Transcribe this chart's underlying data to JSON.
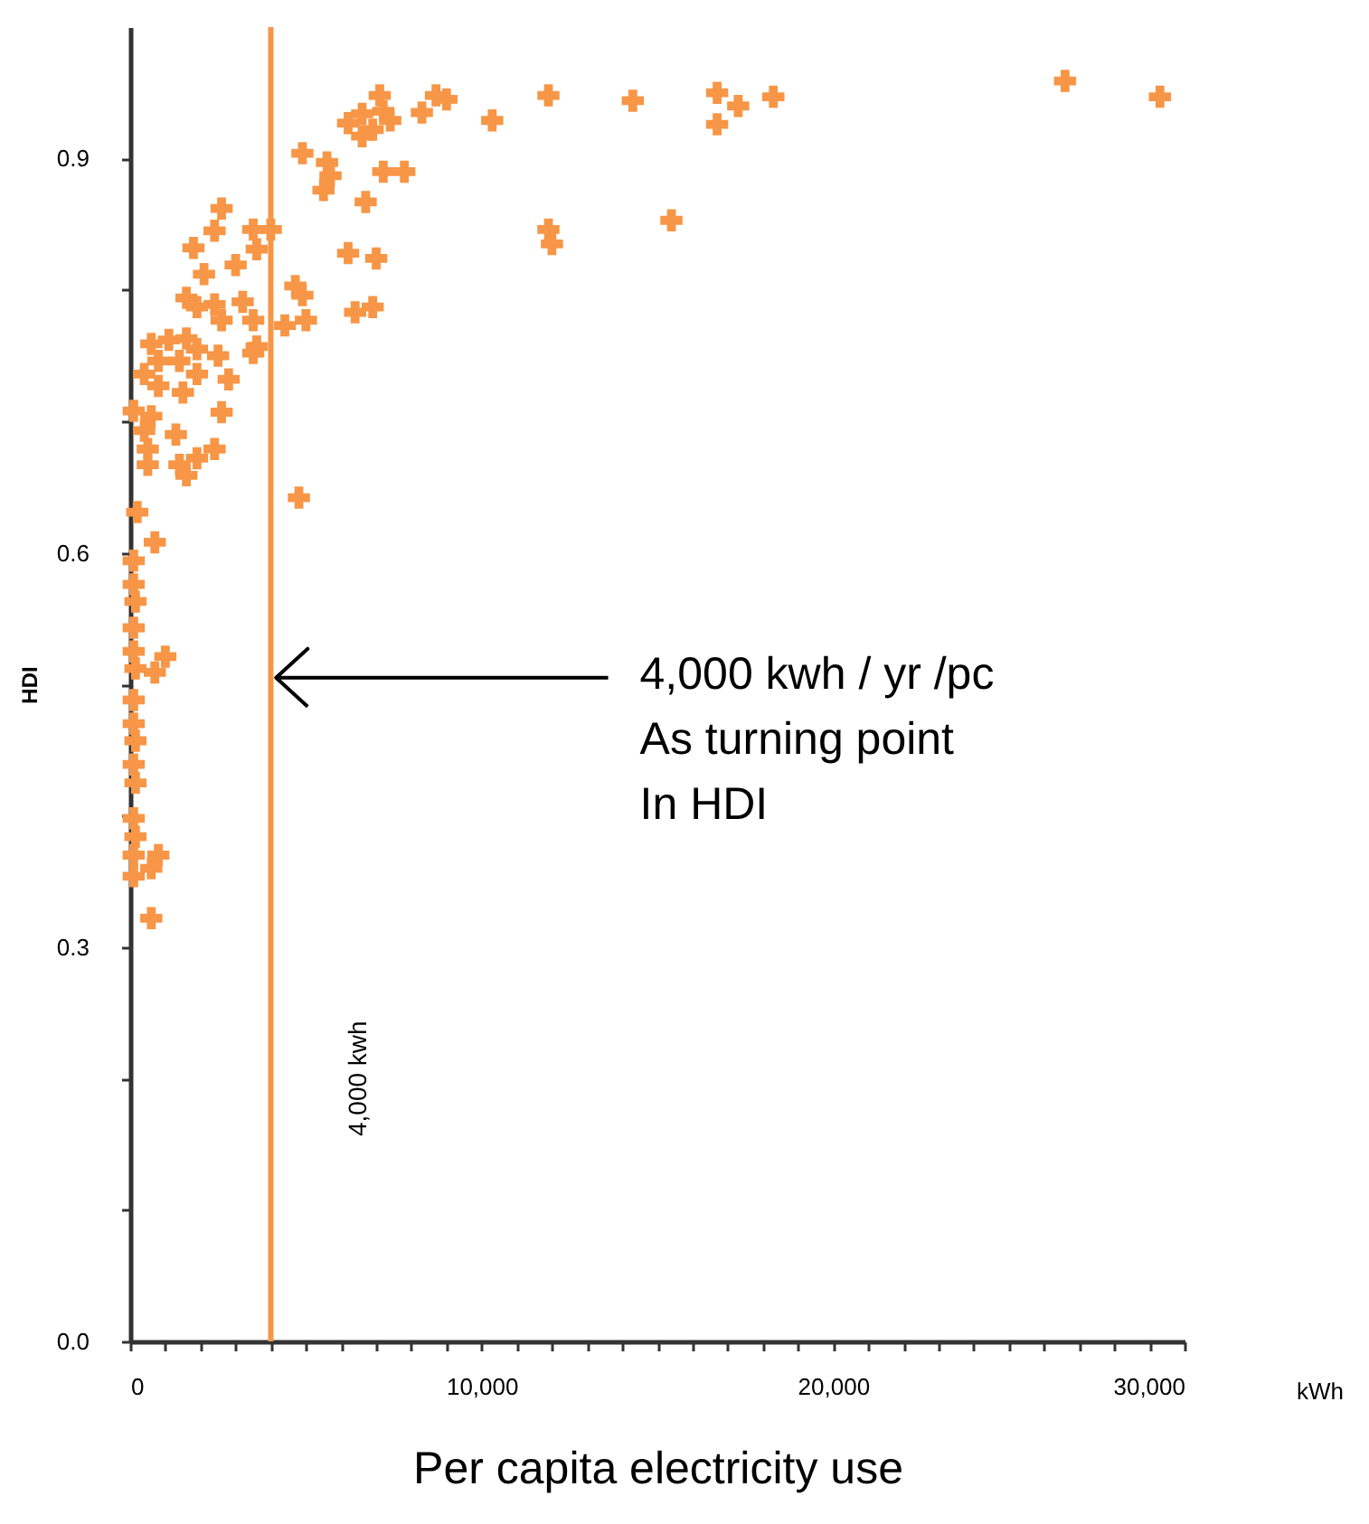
{
  "chart_data": {
    "type": "scatter",
    "xlabel": "Per capita electricity use",
    "ylabel": "HDI",
    "series": [
      {
        "color": "#f79646",
        "x": [
          7100,
          8700,
          9000,
          8300,
          11900,
          14300,
          10300,
          6200,
          6600,
          6900,
          7400,
          6600,
          7200,
          4900,
          5600,
          5700,
          5500,
          7200,
          7800,
          6700,
          2600,
          2400,
          1800,
          3500,
          4000,
          3600,
          3000,
          6200,
          7000,
          11900,
          12000,
          15400,
          2100,
          4700,
          4900,
          1600,
          1900,
          2400,
          2600,
          3200,
          3500,
          4400,
          5000,
          6400,
          6900,
          3600,
          3500,
          600,
          1100,
          1600,
          1900,
          800,
          1400,
          400,
          1900,
          2500,
          2800,
          800,
          1500,
          2600,
          100,
          600,
          400,
          1300,
          500,
          500,
          1400,
          1900,
          2400,
          1600,
          4800,
          200,
          700,
          100,
          100,
          150,
          100,
          100,
          1000,
          150,
          700,
          100,
          100,
          150,
          100,
          150,
          100,
          150,
          100,
          800,
          600,
          100,
          600,
          16700,
          16700,
          17300,
          18300,
          26600,
          29300
        ],
        "values": [
          0.948,
          0.948,
          0.945,
          0.935,
          0.948,
          0.944,
          0.929,
          0.927,
          0.934,
          0.922,
          0.929,
          0.917,
          0.936,
          0.904,
          0.897,
          0.887,
          0.876,
          0.89,
          0.89,
          0.867,
          0.862,
          0.845,
          0.832,
          0.846,
          0.846,
          0.831,
          0.819,
          0.828,
          0.824,
          0.846,
          0.835,
          0.853,
          0.812,
          0.803,
          0.796,
          0.794,
          0.787,
          0.789,
          0.777,
          0.791,
          0.777,
          0.773,
          0.777,
          0.783,
          0.787,
          0.757,
          0.752,
          0.759,
          0.762,
          0.763,
          0.755,
          0.746,
          0.746,
          0.736,
          0.736,
          0.75,
          0.732,
          0.727,
          0.722,
          0.707,
          0.708,
          0.704,
          0.693,
          0.69,
          0.679,
          0.667,
          0.667,
          0.672,
          0.679,
          0.659,
          0.642,
          0.631,
          0.608,
          0.594,
          0.576,
          0.563,
          0.543,
          0.525,
          0.521,
          0.512,
          0.509,
          0.488,
          0.47,
          0.457,
          0.439,
          0.425,
          0.398,
          0.384,
          0.37,
          0.37,
          0.36,
          0.354,
          0.322,
          0.95,
          0.926,
          0.94,
          0.947,
          0.959,
          0.947
        ]
      }
    ],
    "xlim": [
      0,
      30000
    ],
    "xticks": [
      0,
      {
        "value": 1000,
        "label": null
      },
      {
        "value": 2000,
        "label": null
      },
      {
        "value": 3000,
        "label": null
      },
      {
        "value": 4000,
        "label": null
      },
      {
        "value": 5000,
        "label": null
      },
      {
        "value": 6000,
        "label": null
      },
      {
        "value": 7000,
        "label": null
      },
      {
        "value": 8000,
        "label": null
      },
      {
        "value": 9000,
        "label": null
      },
      {
        "value": 10000,
        "label": "10,000"
      },
      {
        "value": 11000,
        "label": null
      },
      {
        "value": 12000,
        "label": null
      },
      {
        "value": 13000,
        "label": null
      },
      {
        "value": 14000,
        "label": null
      },
      {
        "value": 15000,
        "label": null
      },
      {
        "value": 16000,
        "label": null
      },
      {
        "value": 17000,
        "label": null
      },
      {
        "value": 18000,
        "label": null
      },
      {
        "value": 19000,
        "label": null
      },
      {
        "value": 20000,
        "label": "20,000"
      },
      {
        "value": 21000,
        "label": null
      },
      {
        "value": 22000,
        "label": null
      },
      {
        "value": 23000,
        "label": null
      },
      {
        "value": 24000,
        "label": null
      },
      {
        "value": 25000,
        "label": null
      },
      {
        "value": 26000,
        "label": null
      },
      {
        "value": 27000,
        "label": null
      },
      {
        "value": 28000,
        "label": null
      },
      {
        "value": 29000,
        "label": null
      },
      {
        "value": 30000,
        "label": "30,000"
      }
    ],
    "ylim": [
      0,
      1
    ],
    "yticks": [
      {
        "value": 0,
        "label": "0.0"
      },
      {
        "value": 0.1,
        "label": null
      },
      {
        "value": 0.2,
        "label": null
      },
      {
        "value": 0.3,
        "label": "0.3"
      },
      {
        "value": 0.4,
        "label": null
      },
      {
        "value": 0.5,
        "label": null
      },
      {
        "value": 0.6,
        "label": "0.6"
      },
      {
        "value": 0.7,
        "label": null
      },
      {
        "value": 0.8,
        "label": null
      },
      {
        "value": 0.9,
        "label": "0.9"
      }
    ],
    "ref_lines": [
      {
        "axis": "x",
        "value": 4000,
        "label": "4,000 kwh",
        "color": "#f79646"
      }
    ],
    "annotations": [
      "kWh",
      "4,000 kwh / yr /pc\nAs turning point\nIn HDI"
    ],
    "marker": "cross"
  }
}
